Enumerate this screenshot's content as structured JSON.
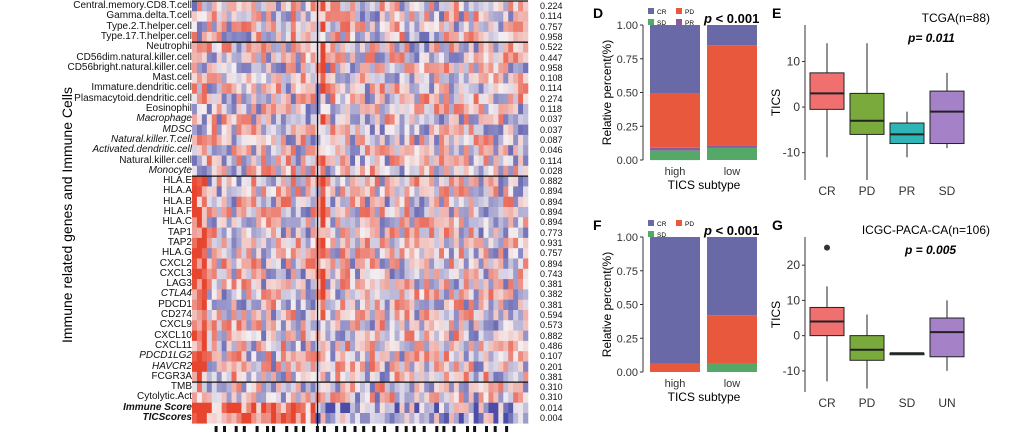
{
  "heatmap": {
    "y_label": "Immune related genes and Immune Cells",
    "rows": [
      {
        "name": "Central.memory.CD8.T.cell",
        "p": "0.224",
        "style": "n"
      },
      {
        "name": "Gamma.delta.T.cell",
        "p": "0.114",
        "style": "n"
      },
      {
        "name": "Type.2.T.helper.cell",
        "p": "0.757",
        "style": "n"
      },
      {
        "name": "Type.17.T.helper.cell",
        "p": "0.958",
        "style": "n"
      },
      {
        "name": "Neutrophil",
        "p": "0.522",
        "style": "n"
      },
      {
        "name": "CD56dim.natural.killer.cell",
        "p": "0.447",
        "style": "n"
      },
      {
        "name": "CD56bright.natural.killer.cell",
        "p": "0.958",
        "style": "n"
      },
      {
        "name": "Mast.cell",
        "p": "0.108",
        "style": "n"
      },
      {
        "name": "Immature.dendritic.cell",
        "p": "0.114",
        "style": "n"
      },
      {
        "name": "Plasmacytoid.dendritic.cell",
        "p": "0.274",
        "style": "n"
      },
      {
        "name": "Eosinophil",
        "p": "0.118",
        "style": "n"
      },
      {
        "name": "Macrophage",
        "p": "0.037",
        "style": "i"
      },
      {
        "name": "MDSC",
        "p": "0.037",
        "style": "i"
      },
      {
        "name": "Natural.killer.T.cell",
        "p": "0.087",
        "style": "i"
      },
      {
        "name": "Activated.dendritic.cell",
        "p": "0.046",
        "style": "i"
      },
      {
        "name": "Natural.killer.cell",
        "p": "0.114",
        "style": "n"
      },
      {
        "name": "Monocyte",
        "p": "0.028",
        "style": "i"
      },
      {
        "name": "HLA.E",
        "p": "0.882",
        "style": "n"
      },
      {
        "name": "HLA.A",
        "p": "0.894",
        "style": "n"
      },
      {
        "name": "HLA.B",
        "p": "0.894",
        "style": "n"
      },
      {
        "name": "HLA.F",
        "p": "0.894",
        "style": "n"
      },
      {
        "name": "HLA.C",
        "p": "0.894",
        "style": "n"
      },
      {
        "name": "TAP1",
        "p": "0.773",
        "style": "n"
      },
      {
        "name": "TAP2",
        "p": "0.931",
        "style": "n"
      },
      {
        "name": "HLA.G",
        "p": "0.757",
        "style": "n"
      },
      {
        "name": "CXCL2",
        "p": "0.894",
        "style": "n"
      },
      {
        "name": "CXCL3",
        "p": "0.743",
        "style": "n"
      },
      {
        "name": "LAG3",
        "p": "0.381",
        "style": "n"
      },
      {
        "name": "CTLA4",
        "p": "0.382",
        "style": "i"
      },
      {
        "name": "PDCD1",
        "p": "0.381",
        "style": "n"
      },
      {
        "name": "CD274",
        "p": "0.594",
        "style": "n"
      },
      {
        "name": "CXCL9",
        "p": "0.573",
        "style": "n"
      },
      {
        "name": "CXCL10",
        "p": "0.882",
        "style": "n"
      },
      {
        "name": "CXCL11",
        "p": "0.486",
        "style": "n"
      },
      {
        "name": "PDCD1LG2",
        "p": "0.107",
        "style": "i"
      },
      {
        "name": "HAVCR2",
        "p": "0.201",
        "style": "i"
      },
      {
        "name": "FCGR3A",
        "p": "0.381",
        "style": "n"
      },
      {
        "name": "TMB",
        "p": "0.310",
        "style": "n"
      },
      {
        "name": "Cytolytic.Act",
        "p": "0.310",
        "style": "n"
      },
      {
        "name": "Immune Score",
        "p": "0.014",
        "style": "bi"
      },
      {
        "name": "TICScores",
        "p": "0.004",
        "style": "bi"
      }
    ],
    "colors": {
      "high": "#e8452f",
      "mid": "#f4eef0",
      "low": "#4b4da8"
    }
  },
  "panels": {
    "D": {
      "letter": "D",
      "p_label": "p",
      "p_value": "< 0.001",
      "xlabel": "TICS subtype",
      "ylabel": "Relative percent(%)"
    },
    "E": {
      "letter": "E",
      "title": "TCGA(n=88)",
      "p_text": "p= 0.011",
      "ylabel": "TICS"
    },
    "F": {
      "letter": "F",
      "p_label": "p",
      "p_value": "< 0.001",
      "xlabel": "TICS subtype",
      "ylabel": "Relative percent(%)"
    },
    "G": {
      "letter": "G",
      "title": "ICGC-PACA-CA(n=106)",
      "p_text": "p = 0.005",
      "ylabel": "TICS"
    }
  },
  "chart_data": [
    {
      "type": "bar",
      "stacked": true,
      "panel": "D",
      "categories": [
        "high",
        "low"
      ],
      "series": [
        {
          "name": "SD",
          "color": "#55a868",
          "values": [
            0.07,
            0.09
          ]
        },
        {
          "name": "PR",
          "color": "#8a5a9e",
          "values": [
            0.02,
            0.02
          ]
        },
        {
          "name": "PD",
          "color": "#e8583d",
          "values": [
            0.4,
            0.74
          ]
        },
        {
          "name": "CR",
          "color": "#6a69a8",
          "values": [
            0.51,
            0.15
          ]
        }
      ],
      "legend": [
        "CR",
        "PD",
        "SD",
        "PR"
      ],
      "yticks": [
        "0.00",
        "0.25",
        "0.50",
        "0.75",
        "1.00"
      ],
      "ylim": [
        0,
        1
      ],
      "xlabel": "TICS subtype",
      "ylabel": "Relative percent(%)"
    },
    {
      "type": "box",
      "panel": "E",
      "title": "TCGA(n=88)",
      "categories": [
        "CR",
        "PD",
        "PR",
        "SD"
      ],
      "colors": [
        "#f07070",
        "#7aaa3c",
        "#2fb5b5",
        "#a582c8"
      ],
      "boxes": [
        {
          "min": -11,
          "q1": -0.5,
          "median": 3,
          "q3": 7.5,
          "max": 14
        },
        {
          "min": -16,
          "q1": -6,
          "median": -3,
          "q3": 3,
          "max": 14
        },
        {
          "min": -11,
          "q1": -8,
          "median": -6,
          "q3": -3.5,
          "max": -1
        },
        {
          "min": -9,
          "q1": -8,
          "median": -1,
          "q3": 3.5,
          "max": 7.5
        }
      ],
      "yticks": [
        "10",
        "0",
        "-10"
      ],
      "ylim": [
        -16,
        18
      ],
      "ylabel": "TICS"
    },
    {
      "type": "bar",
      "stacked": true,
      "panel": "F",
      "categories": [
        "high",
        "low"
      ],
      "series": [
        {
          "name": "SD",
          "color": "#55a868",
          "values": [
            0.0,
            0.06
          ]
        },
        {
          "name": "PD",
          "color": "#e8583d",
          "values": [
            0.06,
            0.36
          ]
        },
        {
          "name": "CR",
          "color": "#6a69a8",
          "values": [
            0.94,
            0.58
          ]
        }
      ],
      "legend": [
        "CR",
        "PD",
        "SD"
      ],
      "yticks": [
        "0.00",
        "0.25",
        "0.50",
        "0.75",
        "1.00"
      ],
      "ylim": [
        0,
        1
      ],
      "xlabel": "TICS subtype",
      "ylabel": "Relative percent(%)"
    },
    {
      "type": "box",
      "panel": "G",
      "title": "ICGC-PACA-CA(n=106)",
      "categories": [
        "CR",
        "PD",
        "SD",
        "UN"
      ],
      "colors": [
        "#f07070",
        "#7aaa3c",
        "#2fb5b5",
        "#a582c8"
      ],
      "boxes": [
        {
          "min": -13,
          "q1": 0,
          "median": 4,
          "q3": 8,
          "max": 14,
          "outliers": [
            25
          ]
        },
        {
          "min": -15,
          "q1": -7,
          "median": -4,
          "q3": 0,
          "max": 6
        },
        {
          "min": -5,
          "q1": -5,
          "median": -5,
          "q3": -5,
          "max": -5
        },
        {
          "min": -10,
          "q1": -6,
          "median": 1,
          "q3": 5,
          "max": 10
        }
      ],
      "yticks": [
        "20",
        "10",
        "0",
        "-10"
      ],
      "ylim": [
        -16,
        28
      ],
      "ylabel": "TICS"
    }
  ]
}
